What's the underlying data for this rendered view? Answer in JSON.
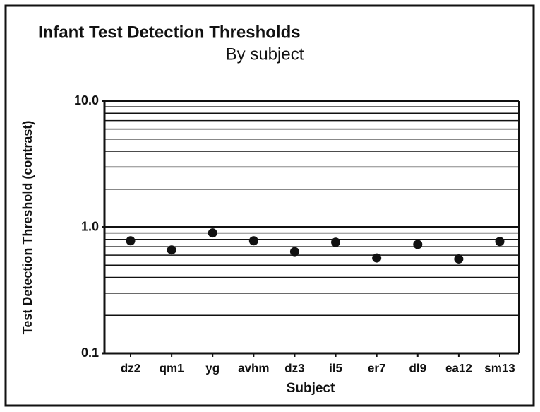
{
  "chart_data": {
    "type": "scatter",
    "title": "Infant Test Detection Thresholds",
    "subtitle": "By subject",
    "x_label": "Subject",
    "y_label": "Test Detection Threshold (contrast)",
    "categories": [
      "dz2",
      "qm1",
      "yg",
      "avhm",
      "dz3",
      "il5",
      "er7",
      "dl9",
      "ea12",
      "sm13"
    ],
    "values": [
      0.78,
      0.66,
      0.9,
      0.78,
      0.64,
      0.76,
      0.57,
      0.73,
      0.56,
      0.77
    ],
    "color": "#111111",
    "log_scale": true,
    "ylim": [
      0.1,
      10
    ],
    "yticks": [
      {
        "value": 10,
        "label": "10.0"
      },
      {
        "value": 1,
        "label": "1.0"
      },
      0.1
    ],
    "yticks_minor": [
      0.2,
      0.3,
      0.4,
      0.5,
      0.6,
      0.7,
      0.8,
      0.9,
      2,
      3,
      4,
      5,
      6,
      7,
      8,
      9
    ],
    "grid": true
  }
}
